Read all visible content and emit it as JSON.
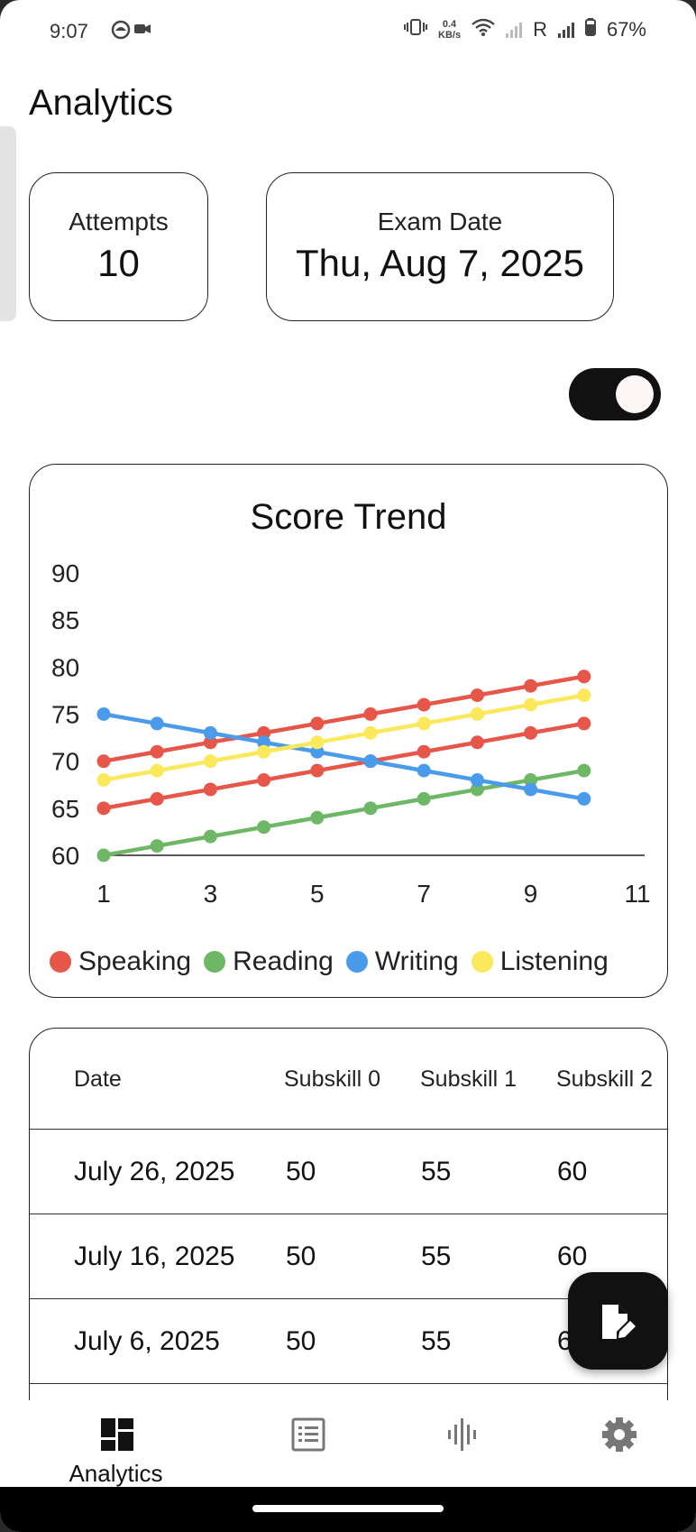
{
  "status_bar": {
    "time": "9:07",
    "net_speed_value": "0.4",
    "net_speed_unit": "KB/s",
    "roaming": "R",
    "battery": "67%"
  },
  "page": {
    "title": "Analytics"
  },
  "summary": {
    "attempts_label": "Attempts",
    "attempts_value": "10",
    "exam_label": "Exam Date",
    "exam_value": "Thu, Aug 7, 2025"
  },
  "toggle": {
    "on": true
  },
  "chart_data": {
    "type": "line",
    "title": "Score Trend",
    "x": [
      1,
      2,
      3,
      4,
      5,
      6,
      7,
      8,
      9,
      10
    ],
    "xlim": [
      1,
      11
    ],
    "ylim": [
      60,
      90
    ],
    "x_ticks": [
      "1",
      "3",
      "5",
      "7",
      "9",
      "11"
    ],
    "y_ticks": [
      "60",
      "65",
      "70",
      "75",
      "80",
      "85",
      "90"
    ],
    "grid": false,
    "legend": "bottom",
    "series": [
      {
        "name": "Speaking",
        "color": "#e65649",
        "values": [
          70,
          71,
          72,
          73,
          74,
          75,
          76,
          77,
          78,
          79
        ]
      },
      {
        "name": "Speaking",
        "color": "#e65649",
        "values": [
          65,
          66,
          67,
          68,
          69,
          70,
          71,
          72,
          73,
          74
        ]
      },
      {
        "name": "Reading",
        "color": "#6db766",
        "values": [
          60,
          61,
          62,
          63,
          64,
          65,
          66,
          67,
          68,
          69
        ]
      },
      {
        "name": "Writing",
        "color": "#4a9bea",
        "values": [
          75,
          74,
          73,
          72,
          71,
          70,
          69,
          68,
          67,
          66
        ]
      },
      {
        "name": "Listening",
        "color": "#fbe85b",
        "values": [
          68,
          69,
          70,
          71,
          72,
          73,
          74,
          75,
          76,
          77
        ]
      }
    ],
    "legend_items": [
      {
        "name": "Speaking",
        "color": "#e65649"
      },
      {
        "name": "Reading",
        "color": "#6db766"
      },
      {
        "name": "Writing",
        "color": "#4a9bea"
      },
      {
        "name": "Listening",
        "color": "#fbe85b"
      }
    ]
  },
  "table": {
    "columns": [
      "Date",
      "Subskill 0",
      "Subskill 1",
      "Subskill 2"
    ],
    "rows": [
      [
        "July 26, 2025",
        "50",
        "55",
        "60"
      ],
      [
        "July 16, 2025",
        "50",
        "55",
        "60"
      ],
      [
        "July 6, 2025",
        "50",
        "55",
        "60"
      ]
    ]
  },
  "fab": {
    "icon": "edit-note-icon"
  },
  "bottom_nav": [
    {
      "label": "Analytics",
      "icon": "dashboard-icon",
      "active": true
    },
    {
      "label": "",
      "icon": "list-icon",
      "active": false
    },
    {
      "label": "",
      "icon": "audio-wave-icon",
      "active": false
    },
    {
      "label": "",
      "icon": "gear-icon",
      "active": false
    }
  ]
}
